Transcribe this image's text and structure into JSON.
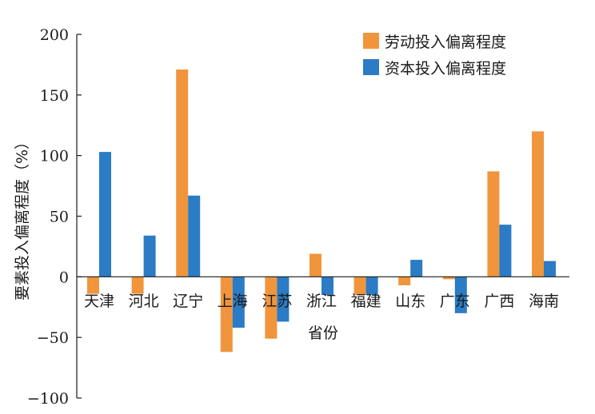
{
  "chart_data": {
    "type": "bar",
    "categories": [
      "天津",
      "河北",
      "辽宁",
      "上海",
      "江苏",
      "浙江",
      "福建",
      "山东",
      "广东",
      "广西",
      "海南"
    ],
    "series": [
      {
        "name": "劳动投入偏离程度",
        "color": "#f0953c",
        "values": [
          -14,
          -14,
          171,
          -62,
          -51,
          19,
          -15,
          -7,
          -2,
          87,
          120
        ]
      },
      {
        "name": "资本投入偏离程度",
        "color": "#2b7bc5",
        "values": [
          103,
          34,
          67,
          -42,
          -37,
          -15,
          -15,
          14,
          -30,
          43,
          13
        ]
      }
    ],
    "title": "",
    "xlabel": "省份",
    "ylabel": "要素投入偏离程度（%）",
    "ylim": [
      -100,
      200
    ],
    "yticks": [
      -100,
      -50,
      0,
      50,
      100,
      150,
      200
    ],
    "grid": false,
    "legend_position": "top-right"
  }
}
